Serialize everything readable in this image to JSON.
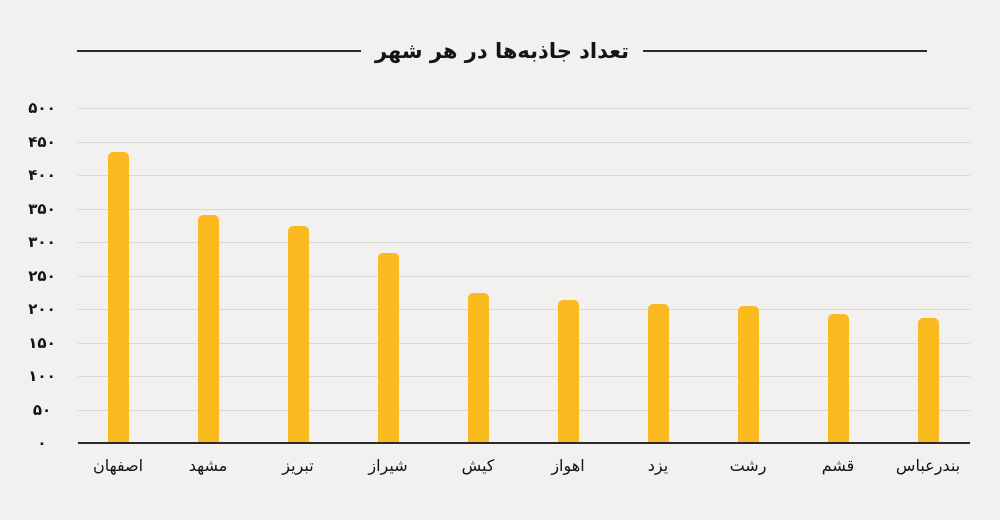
{
  "title": "تعداد جاذبه‌ها در هر شهر",
  "colors": {
    "background": "#F2F1EF",
    "bar": "#FBBA20",
    "gridline": "#D9D8D5",
    "axis": "#2B2B2B",
    "text": "#141414"
  },
  "chart_data": {
    "type": "bar",
    "title": "تعداد جاذبه‌ها در هر شهر",
    "categories": [
      "اصفهان",
      "مشهد",
      "تبریز",
      "شیراز",
      "کیش",
      "اهواز",
      "یزد",
      "رشت",
      "قشم",
      "بندرعباس"
    ],
    "values": [
      435,
      341,
      324,
      283,
      224,
      214,
      207,
      204,
      193,
      186
    ],
    "y_tick_labels": [
      "۵۰۰",
      "۴۵۰",
      "۴۰۰",
      "۳۵۰",
      "۳۰۰",
      "۲۵۰",
      "۲۰۰",
      "۱۵۰",
      "۱۰۰",
      "۵۰",
      "۰"
    ],
    "y_tick_values": [
      500,
      450,
      400,
      350,
      300,
      250,
      200,
      150,
      100,
      50,
      0
    ],
    "ylim": [
      0,
      500
    ],
    "grid": true,
    "legend": false,
    "bar_color": "#FBBA20",
    "direction": "rtl-labels"
  }
}
